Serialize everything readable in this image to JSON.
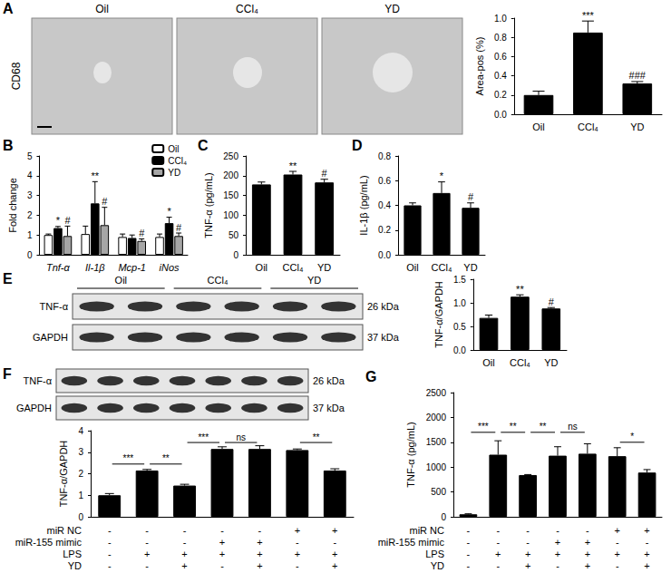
{
  "chart_data": [
    {
      "type": "bar",
      "ylabel": "Area-pos (%)",
      "categories": [
        "Oil",
        "CCl₄",
        "YD"
      ],
      "values": [
        0.2,
        0.85,
        0.32
      ],
      "errors": [
        0.04,
        0.12,
        0.02
      ],
      "annotations": [
        null,
        "***",
        "###"
      ],
      "color": "#000000",
      "ylim": [
        0,
        1
      ],
      "yticks": [
        {
          "value": 0,
          "label": "0.0"
        },
        0.2,
        0.4,
        0.6,
        0.8,
        {
          "value": 1,
          "label": "1.0"
        }
      ],
      "grid": false
    },
    {
      "type": "bar",
      "panel": "B",
      "ylabel": "Fold change",
      "categories": [
        "Tnf-α",
        "Il-1β",
        "Mcp-1",
        "iNos"
      ],
      "series": [
        {
          "name": "Oil",
          "color": "#ffffff",
          "values": [
            1.0,
            1.05,
            0.9,
            0.9
          ],
          "errors": [
            0.05,
            0.4,
            0.15,
            0.15
          ]
        },
        {
          "name": "CCl₄",
          "color": "#000000",
          "values": [
            1.35,
            2.6,
            0.85,
            1.6
          ],
          "errors": [
            0.08,
            1.1,
            0.15,
            0.3
          ],
          "annotations": [
            "*",
            "**",
            null,
            "*"
          ]
        },
        {
          "name": "YD",
          "color": "#a6a6a6",
          "values": [
            0.95,
            1.5,
            0.7,
            0.95
          ],
          "errors": [
            0.5,
            0.9,
            0.1,
            0.15
          ],
          "annotations": [
            "#",
            "#",
            "#",
            "#"
          ]
        }
      ],
      "legend": "upper right",
      "ylim": [
        0,
        5
      ],
      "yticks": [
        0,
        1,
        2,
        3,
        4,
        5
      ],
      "grid": false
    },
    {
      "type": "bar",
      "panel": "C",
      "ylabel": "TNF-α (pg/mL)",
      "categories": [
        "Oil",
        "CCl₄",
        "YD"
      ],
      "values": [
        178,
        203,
        183
      ],
      "errors": [
        6,
        8,
        8
      ],
      "annotations": [
        null,
        "**",
        "#"
      ],
      "color": "#000000",
      "ylim": [
        0,
        250
      ],
      "yticks": [
        0,
        50,
        100,
        150,
        200,
        250
      ],
      "grid": false
    },
    {
      "type": "bar",
      "panel": "D",
      "ylabel": "IL-1β (pg/mL)",
      "categories": [
        "Oil",
        "CCl₄",
        "YD"
      ],
      "values": [
        0.4,
        0.5,
        0.38
      ],
      "errors": [
        0.02,
        0.09,
        0.04
      ],
      "annotations": [
        null,
        "*",
        "#"
      ],
      "color": "#000000",
      "ylim": [
        0,
        0.8
      ],
      "yticks": [
        {
          "value": 0,
          "label": "0.0"
        },
        0.2,
        0.4,
        0.6,
        0.8
      ],
      "grid": false
    },
    {
      "type": "bar",
      "ylabel": "TNF-α/GAPDH",
      "categories": [
        "Oil",
        "CCl₄",
        "YD"
      ],
      "values": [
        0.68,
        1.13,
        0.88
      ],
      "errors": [
        0.06,
        0.04,
        0.02
      ],
      "annotations": [
        null,
        "**",
        "#"
      ],
      "color": "#000000",
      "ylim": [
        0,
        1.5
      ],
      "yticks": [
        {
          "value": 0,
          "label": "0.0"
        },
        0.5,
        {
          "value": 1,
          "label": "1.0"
        },
        1.5
      ],
      "grid": false
    },
    {
      "type": "bar",
      "ylabel": "TNF-α/GAPDH",
      "categories": [
        null,
        null,
        null,
        null,
        null,
        null,
        null
      ],
      "values": [
        1.0,
        2.15,
        1.45,
        3.15,
        3.15,
        3.1,
        2.15
      ],
      "errors": [
        0.08,
        0.05,
        0.06,
        0.1,
        0.15,
        0.05,
        0.08
      ],
      "color": "#000000",
      "conditions": [
        {
          "name": "miR NC",
          "values": [
            "-",
            "-",
            "-",
            "-",
            "-",
            "+",
            "+"
          ]
        },
        {
          "name": "miR-155 mimic",
          "values": [
            "-",
            "-",
            "-",
            "+",
            "+",
            "-",
            "-"
          ]
        },
        {
          "name": "LPS",
          "values": [
            "-",
            "+",
            "+",
            "+",
            "+",
            "+",
            "+"
          ]
        },
        {
          "name": "YD",
          "values": [
            "-",
            "-",
            "+",
            "-",
            "+",
            "-",
            "+"
          ]
        }
      ],
      "comparisons": [
        {
          "from": 0,
          "to": 1,
          "y": 2.45,
          "label": "***"
        },
        {
          "from": 1,
          "to": 2,
          "y": 2.45,
          "label": "**"
        },
        {
          "from": 2,
          "to": 3,
          "y": 3.45,
          "label": "***"
        },
        {
          "from": 3,
          "to": 4,
          "y": 3.45,
          "label": "ns"
        },
        {
          "from": 5,
          "to": 6,
          "y": 3.45,
          "label": "**"
        }
      ],
      "ylim": [
        0,
        4
      ],
      "yticks": [
        0,
        1,
        2,
        3,
        4
      ],
      "grid": false
    },
    {
      "type": "bar",
      "panel": "G",
      "ylabel": "TNF-α (pg/mL)",
      "categories": [
        null,
        null,
        null,
        null,
        null,
        null,
        null
      ],
      "values": [
        50,
        1250,
        840,
        1230,
        1270,
        1220,
        890
      ],
      "errors": [
        10,
        280,
        10,
        180,
        200,
        170,
        60
      ],
      "color": "#000000",
      "conditions": [
        {
          "name": "miR NC",
          "values": [
            "-",
            "-",
            "-",
            "-",
            "-",
            "+",
            "+"
          ]
        },
        {
          "name": "miR-155 mimic",
          "values": [
            "-",
            "-",
            "-",
            "+",
            "+",
            "-",
            "-"
          ]
        },
        {
          "name": "LPS",
          "values": [
            "-",
            "+",
            "+",
            "+",
            "+",
            "+",
            "+"
          ]
        },
        {
          "name": "YD",
          "values": [
            "-",
            "-",
            "+",
            "-",
            "+",
            "-",
            "+"
          ]
        }
      ],
      "comparisons": [
        {
          "from": 0,
          "to": 1,
          "y": 1700,
          "label": "***"
        },
        {
          "from": 1,
          "to": 2,
          "y": 1700,
          "label": "**"
        },
        {
          "from": 2,
          "to": 3,
          "y": 1700,
          "label": "**"
        },
        {
          "from": 3,
          "to": 4,
          "y": 1700,
          "label": "ns"
        },
        {
          "from": 5,
          "to": 6,
          "y": 1500,
          "label": "*"
        }
      ],
      "ylim": [
        0,
        2500
      ],
      "yticks": [
        0,
        500,
        1000,
        1500,
        2000,
        2500
      ],
      "grid": false
    }
  ],
  "figure": {
    "images": {
      "panel": "A",
      "stain": "CD68",
      "labels": [
        "Oil",
        "CCl₄",
        "YD"
      ]
    },
    "blots": [
      {
        "panel": "E",
        "groups": [
          "Oil",
          "CCl₄",
          "YD"
        ],
        "lanes": 6,
        "bands": [
          {
            "name": "TNF-α",
            "size": "26 kDa"
          },
          {
            "name": "GAPDH",
            "size": "37 kDa"
          }
        ]
      },
      {
        "panel": "F",
        "lanes": 7,
        "bands": [
          {
            "name": "TNF-α",
            "size": "26 kDa"
          },
          {
            "name": "GAPDH",
            "size": "37 kDa"
          }
        ]
      }
    ]
  }
}
